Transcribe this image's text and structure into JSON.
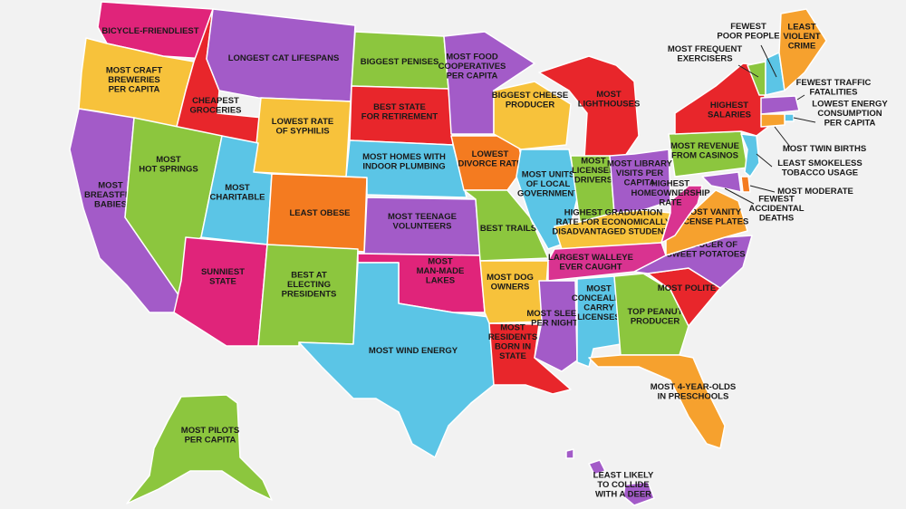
{
  "colors": {
    "purple": "#a35bc8",
    "pink": "#e0247a",
    "red": "#e8262b",
    "orange": "#f6a12e",
    "dark_orange": "#f47b20",
    "yellow": "#f7c23b",
    "green": "#8cc63e",
    "light_blue": "#5bc5e6",
    "magenta": "#d93390"
  },
  "states": [
    {
      "id": "WA",
      "label": "BICYCLE-FRIENDLIEST",
      "color": "pink"
    },
    {
      "id": "OR",
      "label": "MOST CRAFT\nBREWERIES\nPER CAPITA",
      "color": "yellow"
    },
    {
      "id": "CA",
      "label": "MOST\nBREASTFED\nBABIES",
      "color": "purple"
    },
    {
      "id": "ID",
      "label": "CHEAPEST\nGROCERIES",
      "color": "red"
    },
    {
      "id": "NV",
      "label": "MOST\nHOT SPRINGS",
      "color": "green"
    },
    {
      "id": "MT",
      "label": "LONGEST CAT LIFESPANS",
      "color": "purple"
    },
    {
      "id": "WY",
      "label": "LOWEST RATE\nOF SYPHILIS",
      "color": "yellow"
    },
    {
      "id": "UT",
      "label": "MOST\nCHARITABLE",
      "color": "light_blue"
    },
    {
      "id": "AZ",
      "label": "SUNNIEST\nSTATE",
      "color": "pink"
    },
    {
      "id": "CO",
      "label": "LEAST OBESE",
      "color": "dark_orange"
    },
    {
      "id": "NM",
      "label": "BEST AT\nELECTING\nPRESIDENTS",
      "color": "green"
    },
    {
      "id": "ND",
      "label": "BIGGEST PENISES",
      "color": "green"
    },
    {
      "id": "SD",
      "label": "BEST STATE\nFOR RETIREMENT",
      "color": "red"
    },
    {
      "id": "NE",
      "label": "MOST HOMES WITH\nINDOOR PLUMBING",
      "color": "light_blue"
    },
    {
      "id": "KS",
      "label": "MOST TEENAGE\nVOLUNTEERS",
      "color": "purple"
    },
    {
      "id": "OK",
      "label": "MOST\nMAN-MADE\nLAKES",
      "color": "pink"
    },
    {
      "id": "TX",
      "label": "MOST WIND ENERGY",
      "color": "light_blue"
    },
    {
      "id": "MN",
      "label": "MOST FOOD\nCOOPERATIVES\nPER CAPITA",
      "color": "purple"
    },
    {
      "id": "IA",
      "label": "LOWEST\nDIVORCE RATE",
      "color": "dark_orange"
    },
    {
      "id": "MO",
      "label": "BEST TRAILS",
      "color": "green"
    },
    {
      "id": "AR",
      "label": "MOST DOG\nOWNERS",
      "color": "yellow"
    },
    {
      "id": "LA",
      "label": "MOST\nRESIDENTS\nBORN IN\nSTATE",
      "color": "red"
    },
    {
      "id": "WI",
      "label": "BIGGEST CHEESE\nPRODUCER",
      "color": "yellow"
    },
    {
      "id": "IL",
      "label": "MOST UNITS\nOF LOCAL\nGOVERNMENT",
      "color": "light_blue"
    },
    {
      "id": "MI",
      "label": "MOST\nLIGHTHOUSES",
      "color": "red"
    },
    {
      "id": "IN",
      "label": "MOST\nLICENSED\nDRIVERS",
      "color": "green"
    },
    {
      "id": "OH",
      "label": "MOST LIBRARY\nVISITS PER\nCAPITA",
      "color": "purple"
    },
    {
      "id": "KY",
      "label": "HIGHEST GRADUATION\nRATE FOR ECONOMICALLY\nDISADVANTAGED STUDENTS",
      "color": "yellow"
    },
    {
      "id": "TN",
      "label": "LARGEST WALLEYE\nEVER CAUGHT",
      "color": "magenta"
    },
    {
      "id": "MS",
      "label": "MOST SLEEP\nPER NIGHT",
      "color": "purple"
    },
    {
      "id": "AL",
      "label": "MOST\nCONCEALED\nCARRY\nLICENSES",
      "color": "light_blue"
    },
    {
      "id": "GA",
      "label": "TOP PEANUT\nPRODUCER",
      "color": "green"
    },
    {
      "id": "FL",
      "label": "MOST 4-YEAR-OLDS\nIN PRESCHOOLS",
      "color": "orange"
    },
    {
      "id": "SC",
      "label": "MOST POLITE",
      "color": "red"
    },
    {
      "id": "NC",
      "label": "BIGGEST\nPRODUCER OF\nSWEET POTATOES",
      "color": "purple"
    },
    {
      "id": "VA",
      "label": "MOST VANITY\nLICENSE PLATES",
      "color": "orange"
    },
    {
      "id": "WV",
      "label": "HIGHEST\nHOMEOWNERSHIP\nRATE",
      "color": "magenta"
    },
    {
      "id": "PA",
      "label": "MOST REVENUE\nFROM CASINOS",
      "color": "green"
    },
    {
      "id": "NY",
      "label": "HIGHEST\nSALARIES",
      "color": "red"
    },
    {
      "id": "VT",
      "label": "MOST FREQUENT\nEXERCISERS",
      "color": "green"
    },
    {
      "id": "NH",
      "label": "FEWEST\nPOOR PEOPLE",
      "color": "light_blue"
    },
    {
      "id": "ME",
      "label": "LEAST\nVIOLENT\nCRIME",
      "color": "orange"
    },
    {
      "id": "MA",
      "label": "FEWEST TRAFFIC\nFATALITIES",
      "color": "purple"
    },
    {
      "id": "RI",
      "label": "LOWEST ENERGY\nCONSUMPTION\nPER CAPITA",
      "color": "light_blue"
    },
    {
      "id": "CT",
      "label": "MOST TWIN BIRTHS",
      "color": "orange"
    },
    {
      "id": "NJ",
      "label": "LEAST SMOKELESS\nTOBACCO USAGE",
      "color": "light_blue"
    },
    {
      "id": "DE",
      "label": "MOST MODERATE",
      "color": "dark_orange"
    },
    {
      "id": "MD",
      "label": "FEWEST\nACCIDENTAL\nDEATHS",
      "color": "purple"
    },
    {
      "id": "AK",
      "label": "MOST PILOTS\nPER CAPITA",
      "color": "green"
    },
    {
      "id": "HI",
      "label": "LEAST LIKELY\nTO COLLIDE\nWITH A DEER",
      "color": "purple"
    }
  ]
}
